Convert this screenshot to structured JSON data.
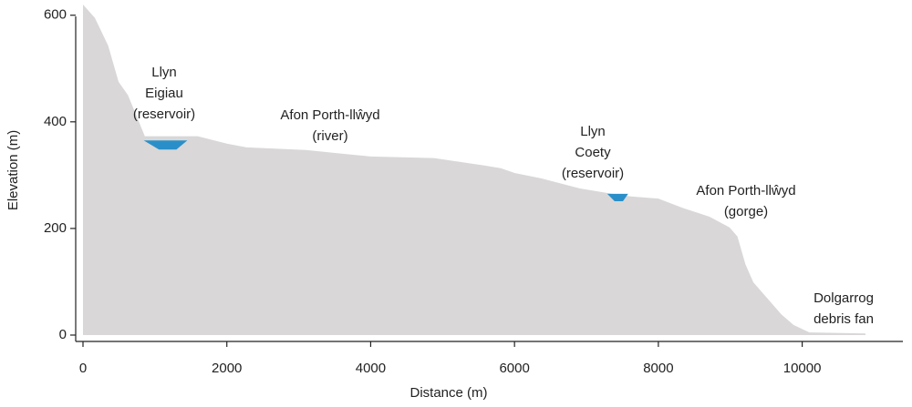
{
  "chart_data": {
    "type": "area",
    "xlabel": "Distance (m)",
    "ylabel": "Elevation (m)",
    "xlim": [
      0,
      11400
    ],
    "ylim": [
      0,
      620
    ],
    "xticks": [
      0,
      2000,
      4000,
      6000,
      8000,
      10000
    ],
    "yticks": [
      0,
      200,
      400,
      600
    ],
    "color": "#d9d7d7",
    "x": [
      0,
      165,
      350,
      495,
      625,
      860,
      1450,
      1595,
      2000,
      2275,
      3100,
      4000,
      4880,
      5580,
      5810,
      6000,
      6370,
      6910,
      7350,
      7620,
      8000,
      8330,
      8710,
      8990,
      9100,
      9210,
      9320,
      9540,
      9710,
      9880,
      10100,
      10880
    ],
    "values": [
      620,
      595,
      543,
      475,
      450,
      373,
      373,
      373,
      359,
      352,
      347,
      335,
      332,
      318,
      313,
      304,
      294,
      275,
      265,
      260,
      256,
      239,
      222,
      202,
      185,
      133,
      99,
      65,
      39,
      19,
      5,
      3
    ],
    "reservoirs": [
      {
        "x_start": 845,
        "x_end": 1450,
        "surface": 365,
        "bottom": 348,
        "color": "#2a8fc9"
      },
      {
        "x_start": 7290,
        "x_end": 7580,
        "surface": 265,
        "bottom": 251,
        "color": "#2a8fc9"
      }
    ],
    "annotations": [
      [
        "Llyn",
        "Eigiau",
        "(reservoir)"
      ],
      [
        "Afon Porth-llŵyd",
        "(river)"
      ],
      [
        "Llyn",
        "Coety",
        "(reservoir)"
      ],
      [
        "Afon Porth-llŵyd",
        "(gorge)"
      ],
      [
        "Dolgarrog",
        "debris fan"
      ]
    ]
  }
}
